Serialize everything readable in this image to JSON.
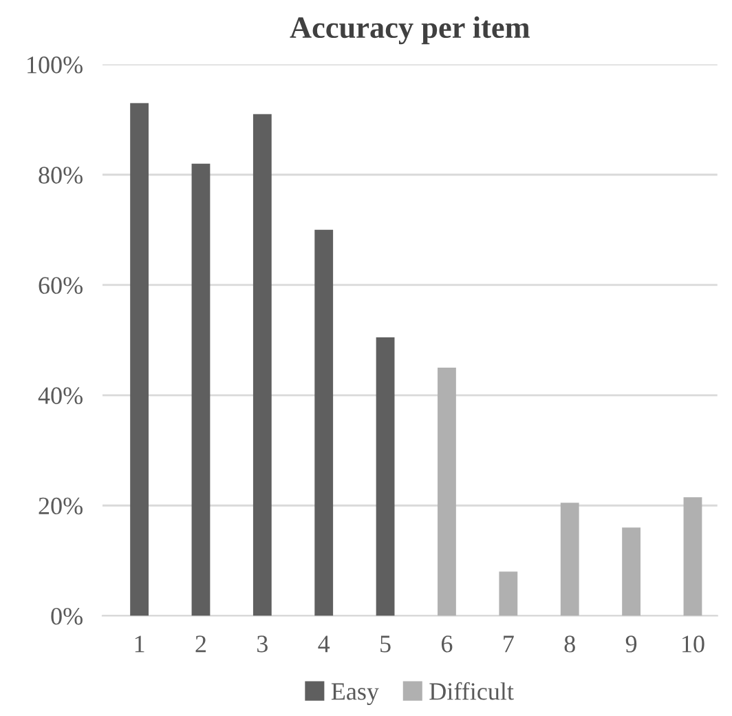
{
  "chart_data": {
    "type": "bar",
    "title": "Accuracy per item",
    "categories": [
      "1",
      "2",
      "3",
      "4",
      "5",
      "6",
      "7",
      "8",
      "9",
      "10"
    ],
    "series": [
      {
        "name": "Easy",
        "color": "#5f5f5f",
        "values": [
          93,
          82,
          91,
          70,
          50.5,
          null,
          null,
          null,
          null,
          null
        ]
      },
      {
        "name": "Difficult",
        "color": "#b0b0b0",
        "values": [
          null,
          null,
          null,
          null,
          null,
          45,
          8,
          20.5,
          16,
          21.5
        ]
      }
    ],
    "ylim": [
      0,
      100
    ],
    "yticks": [
      {
        "value": 0,
        "label": "0%"
      },
      {
        "value": 20,
        "label": "20%"
      },
      {
        "value": 40,
        "label": "40%"
      },
      {
        "value": 60,
        "label": "60%"
      },
      {
        "value": 80,
        "label": "80%"
      },
      {
        "value": 100,
        "label": "100%"
      }
    ],
    "grid": "y",
    "legend": "bottom"
  }
}
